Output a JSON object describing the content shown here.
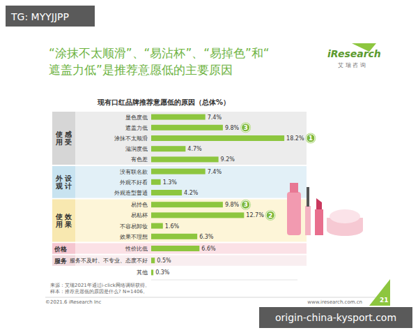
{
  "header": {
    "watermark": "TG: MYYJJPP",
    "headline": [
      "“涂抹不太顺滑”、“易沾杯”、“易掉色”和“",
      "遮盖力低”是推荐意愿低的主要原因"
    ],
    "logo": "iResearch",
    "logo_sub": "艾 瑞 咨 询"
  },
  "chart_data": {
    "type": "bar",
    "orientation": "horizontal",
    "title": "现有口红品牌推荐意愿低的原因（总体%）",
    "categories": [
      "显色度低",
      "遮盖力低",
      "涂抹不太顺滑",
      "滋润度低",
      "有色差",
      "没有联名款",
      "外观不好看",
      "外观造型普通",
      "易掉色",
      "易粘杯",
      "不容易卸妆",
      "效果不理想",
      "性价比低",
      "服务不及时、不专业、态度不好",
      "其他"
    ],
    "category_groups": [
      "使用感受",
      "使用感受",
      "使用感受",
      "使用感受",
      "使用感受",
      "外观设计",
      "外观设计",
      "外观设计",
      "使用效果",
      "使用效果",
      "使用效果",
      "使用效果",
      "价格",
      "服务",
      null
    ],
    "values": [
      7.4,
      9.8,
      18.2,
      4.7,
      9.2,
      7.4,
      1.3,
      4.2,
      9.8,
      12.7,
      1.6,
      6.3,
      6.6,
      0.5,
      0.3
    ],
    "value_labels": [
      "7.4%",
      "9.8%",
      "18.2%",
      "4.7%",
      "9.2%",
      "7.4%",
      "1.3%",
      "4.2%",
      "9.8%",
      "12.7%",
      "1.6%",
      "6.3%",
      "6.6%",
      "0.5%",
      "0.3%"
    ],
    "rank_labels": [
      null,
      "3",
      "1",
      null,
      null,
      null,
      null,
      null,
      "3",
      "2",
      null,
      null,
      null,
      null,
      null
    ],
    "data_labels": true,
    "color": "#8dc63f",
    "xlim": [
      0,
      20
    ],
    "tick_labels": false,
    "grid": false
  },
  "footer": {
    "source": "来源：艾瑞2021年通过i-click网络调研获得。",
    "sample": "样本：推荐意愿低的原因是什么? N=1406。",
    "copyright": "©2021.6 iResearch Inc",
    "website": "www.iresearch.com.cn",
    "page": "21",
    "watermark": "origin-china-kysport.com"
  }
}
